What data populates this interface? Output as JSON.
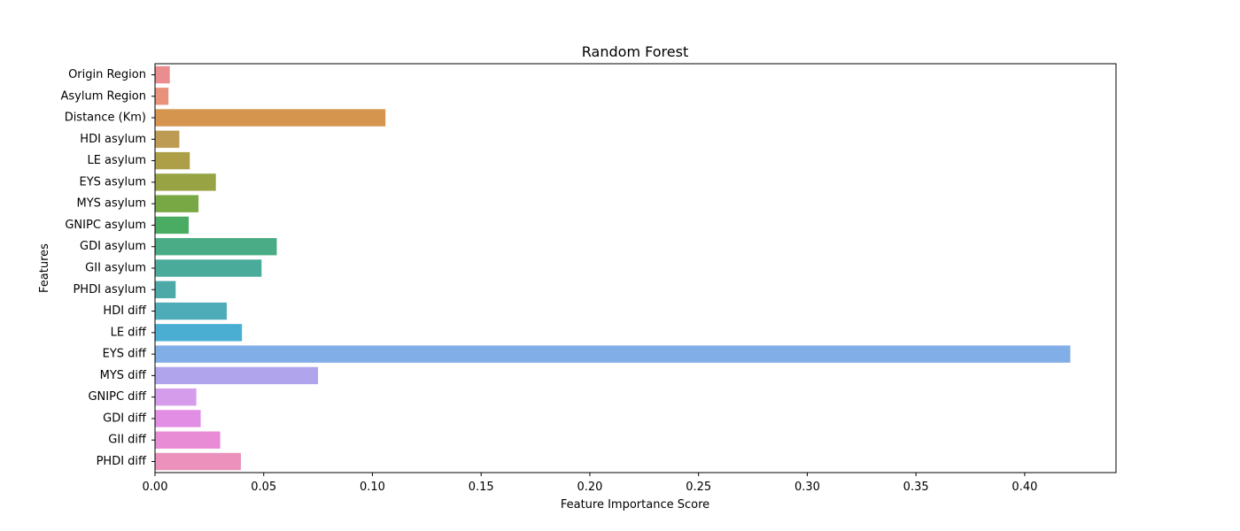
{
  "chart_data": {
    "type": "bar",
    "orientation": "horizontal",
    "title": "Random Forest",
    "xlabel": "Feature Importance Score",
    "ylabel": "Features",
    "xlim": [
      0,
      0.442
    ],
    "xticks": [
      "0.00",
      "0.05",
      "0.10",
      "0.15",
      "0.20",
      "0.25",
      "0.30",
      "0.35",
      "0.40"
    ],
    "grid": false,
    "legend": "none",
    "categories": [
      "Origin Region",
      "Asylum Region",
      "Distance (Km)",
      "HDI asylum",
      "LE asylum",
      "EYS asylum",
      "MYS asylum",
      "GNIPC asylum",
      "GDI asylum",
      "GII asylum",
      "PHDI asylum",
      "HDI diff",
      "LE diff",
      "EYS diff",
      "MYS diff",
      "GNIPC diff",
      "GDI diff",
      "GII diff",
      "PHDI diff"
    ],
    "values": [
      0.0068,
      0.0062,
      0.106,
      0.0112,
      0.016,
      0.028,
      0.02,
      0.0155,
      0.056,
      0.049,
      0.0095,
      0.033,
      0.04,
      0.421,
      0.075,
      0.019,
      0.021,
      0.03,
      0.0395
    ],
    "colors": [
      "#ea8d90",
      "#e8927c",
      "#d5954e",
      "#bd9b53",
      "#ac9f48",
      "#98a444",
      "#78a843",
      "#4aac63",
      "#49ac86",
      "#4aab9b",
      "#4ca9a8",
      "#4eabb8",
      "#4aaed3",
      "#82aee8",
      "#b0a5ed",
      "#d49cea",
      "#e28ee5",
      "#e88cd6",
      "#eb91bb"
    ]
  }
}
